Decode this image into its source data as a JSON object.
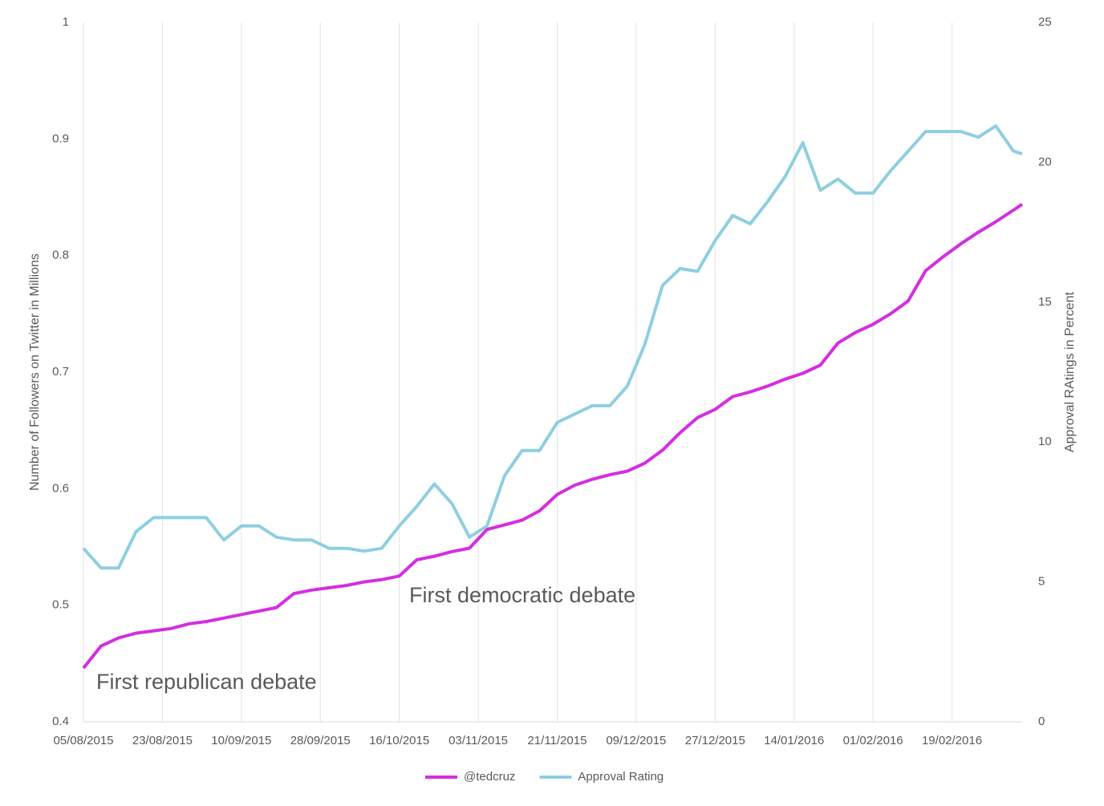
{
  "chart_data": {
    "type": "line",
    "x": [
      "05/08/2015",
      "09/08/2015",
      "13/08/2015",
      "17/08/2015",
      "21/08/2015",
      "25/08/2015",
      "29/08/2015",
      "02/09/2015",
      "06/09/2015",
      "10/09/2015",
      "14/09/2015",
      "18/09/2015",
      "22/09/2015",
      "26/09/2015",
      "30/09/2015",
      "04/10/2015",
      "08/10/2015",
      "12/10/2015",
      "16/10/2015",
      "20/10/2015",
      "24/10/2015",
      "28/10/2015",
      "01/11/2015",
      "05/11/2015",
      "09/11/2015",
      "13/11/2015",
      "17/11/2015",
      "21/11/2015",
      "25/11/2015",
      "29/11/2015",
      "03/12/2015",
      "07/12/2015",
      "11/12/2015",
      "15/12/2015",
      "19/12/2015",
      "23/12/2015",
      "27/12/2015",
      "31/12/2015",
      "04/01/2016",
      "08/01/2016",
      "12/01/2016",
      "16/01/2016",
      "20/01/2016",
      "24/01/2016",
      "28/01/2016",
      "01/02/2016",
      "05/02/2016",
      "09/02/2016",
      "13/02/2016",
      "17/02/2016",
      "21/02/2016",
      "25/02/2016",
      "29/02/2016",
      "04/03/2016",
      "06/03/2016"
    ],
    "series": [
      {
        "name": "@tedcruz",
        "color": "#d42ee0",
        "axis": "y",
        "values": [
          0.446,
          0.465,
          0.472,
          0.476,
          0.478,
          0.48,
          0.484,
          0.486,
          0.489,
          0.492,
          0.495,
          0.498,
          0.51,
          0.513,
          0.515,
          0.517,
          0.52,
          0.522,
          0.525,
          0.539,
          0.542,
          0.546,
          0.549,
          0.565,
          0.569,
          0.573,
          0.581,
          0.595,
          0.603,
          0.608,
          0.612,
          0.615,
          0.622,
          0.633,
          0.648,
          0.661,
          0.668,
          0.679,
          0.683,
          0.688,
          0.694,
          0.699,
          0.706,
          0.725,
          0.734,
          0.741,
          0.75,
          0.761,
          0.787,
          0.799,
          0.81,
          0.82,
          0.829,
          0.839,
          0.844
        ]
      },
      {
        "name": "Approval Rating",
        "color": "#8ecfe0",
        "axis": "y2",
        "values": [
          6.2,
          5.5,
          5.5,
          6.8,
          7.3,
          7.3,
          7.3,
          7.3,
          6.5,
          7.0,
          7.0,
          6.6,
          6.5,
          6.5,
          6.2,
          6.2,
          6.1,
          6.2,
          7.0,
          7.7,
          8.5,
          7.8,
          6.6,
          7.0,
          8.8,
          9.7,
          9.7,
          10.7,
          11.0,
          11.3,
          11.3,
          12.0,
          13.5,
          15.6,
          16.2,
          16.1,
          17.2,
          18.1,
          17.8,
          18.6,
          19.5,
          20.7,
          19.0,
          19.4,
          18.9,
          18.9,
          19.7,
          20.4,
          21.1,
          21.1,
          21.1,
          20.9,
          21.3,
          20.4,
          20.3
        ]
      }
    ],
    "xlim": [
      "05/08/2015",
      "06/03/2016"
    ],
    "xticks": [
      "05/08/2015",
      "23/08/2015",
      "10/09/2015",
      "28/09/2015",
      "16/10/2015",
      "03/11/2015",
      "21/11/2015",
      "09/12/2015",
      "27/12/2015",
      "14/01/2016",
      "01/02/2016",
      "19/02/2016"
    ],
    "ylim": [
      0.4,
      1
    ],
    "yticks": [
      0.4,
      0.5,
      0.6,
      0.7,
      0.8,
      0.9,
      1
    ],
    "y2lim": [
      0,
      25
    ],
    "y2ticks": [
      0,
      5,
      10,
      15,
      20,
      25
    ],
    "ylabel": "Number of Followers on Twitter in Millions",
    "y2label": "Approval RAtings in Percent",
    "annotations": [
      "First republican debate",
      "First democratic debate"
    ],
    "grid": true,
    "legend": "bottom"
  }
}
